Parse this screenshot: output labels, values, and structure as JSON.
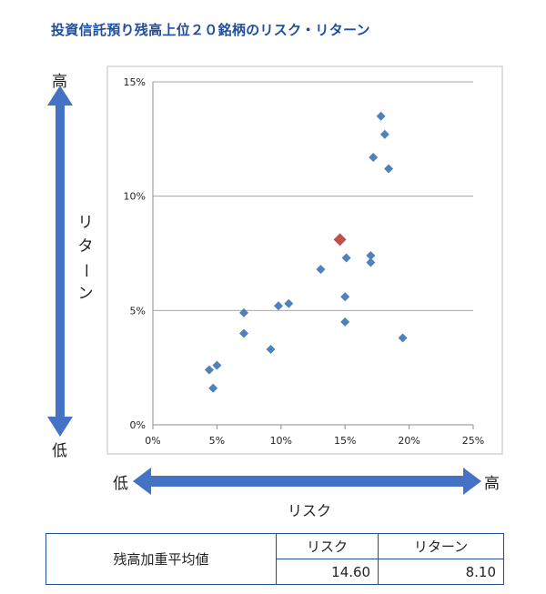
{
  "title": "投資信託預り残高上位２０銘柄のリスク・リターン",
  "y_axis": {
    "label": "リターン",
    "high": "高",
    "low": "低"
  },
  "x_axis": {
    "label": "リスク",
    "high": "高",
    "low": "低"
  },
  "colors": {
    "point": "#4f81bd",
    "highlight": "#c0504d",
    "arrow": "#4472c4",
    "title": "#1f4e9c"
  },
  "chart_data": {
    "type": "scatter",
    "xlim": [
      0,
      25
    ],
    "ylim": [
      0,
      15
    ],
    "x_ticks": [
      "0%",
      "5%",
      "10%",
      "15%",
      "20%",
      "25%"
    ],
    "y_ticks": [
      "0%",
      "5%",
      "10%",
      "15%"
    ],
    "grid": "horizontal",
    "points": [
      {
        "x": 4.4,
        "y": 2.4
      },
      {
        "x": 4.7,
        "y": 1.6
      },
      {
        "x": 5.0,
        "y": 2.6
      },
      {
        "x": 7.1,
        "y": 4.0
      },
      {
        "x": 7.1,
        "y": 4.9
      },
      {
        "x": 9.2,
        "y": 3.3
      },
      {
        "x": 9.8,
        "y": 5.2
      },
      {
        "x": 10.6,
        "y": 5.3
      },
      {
        "x": 13.1,
        "y": 6.8
      },
      {
        "x": 15.0,
        "y": 4.5
      },
      {
        "x": 15.0,
        "y": 5.6
      },
      {
        "x": 15.1,
        "y": 7.3
      },
      {
        "x": 17.0,
        "y": 7.1
      },
      {
        "x": 17.0,
        "y": 7.4
      },
      {
        "x": 17.2,
        "y": 11.7
      },
      {
        "x": 17.8,
        "y": 13.5
      },
      {
        "x": 18.1,
        "y": 12.7
      },
      {
        "x": 18.4,
        "y": 11.2
      },
      {
        "x": 19.5,
        "y": 3.8
      }
    ],
    "highlight": {
      "x": 14.6,
      "y": 8.1
    }
  },
  "summary": {
    "row_label": "残高加重平均値",
    "risk_header": "リスク",
    "return_header": "リターン",
    "risk_value": "14.60",
    "return_value": "8.10"
  }
}
